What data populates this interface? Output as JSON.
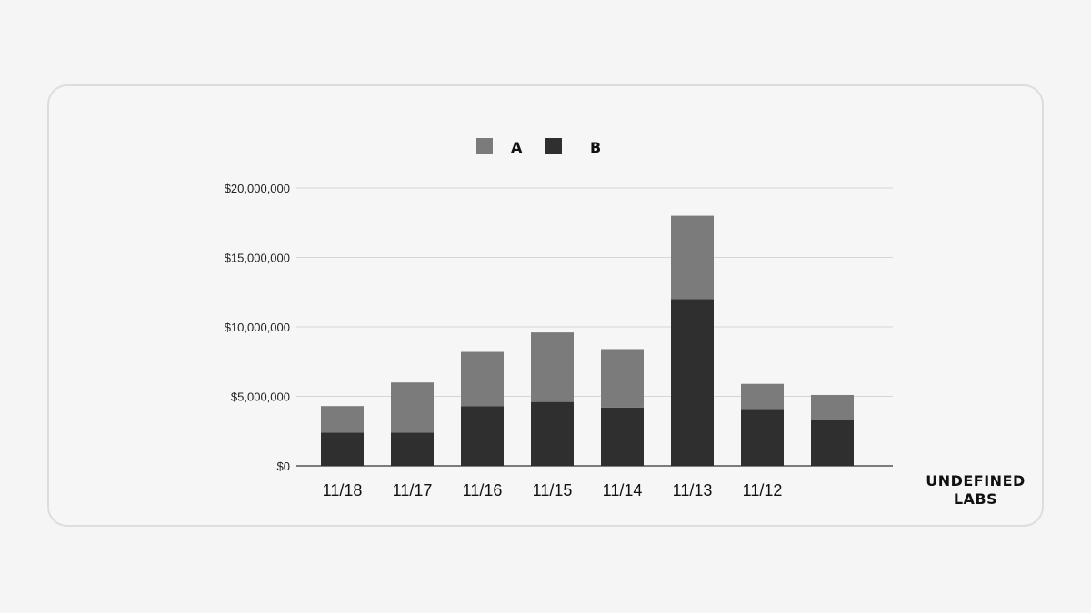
{
  "brand": {
    "line1": "UNDEFINED",
    "line2": "LABS"
  },
  "colors": {
    "A": "#7b7b7b",
    "B": "#2f2f2f",
    "grid": "#d6d6d6",
    "axis": "#333333"
  },
  "chart_data": {
    "type": "bar",
    "stacked": true,
    "title": "",
    "xlabel": "",
    "ylabel": "",
    "categories": [
      "11/18",
      "11/17",
      "11/16",
      "11/15",
      "11/14",
      "11/13",
      "11/12",
      ""
    ],
    "series": [
      {
        "name": "B",
        "values": [
          2400000,
          2400000,
          4300000,
          4600000,
          4200000,
          12000000,
          4100000,
          3300000
        ]
      },
      {
        "name": "A",
        "values": [
          1900000,
          3600000,
          3900000,
          5000000,
          4200000,
          6000000,
          1800000,
          1800000
        ]
      }
    ],
    "ylim": [
      0,
      20000000
    ],
    "yticks": [
      0,
      5000000,
      10000000,
      15000000,
      20000000
    ],
    "ytick_labels": [
      "$0",
      "$5,000,000",
      "$10,000,000",
      "$15,000,000",
      "$20,000,000"
    ],
    "legend": {
      "position": "top-center",
      "entries": [
        "A",
        "B"
      ]
    },
    "grid": true
  }
}
